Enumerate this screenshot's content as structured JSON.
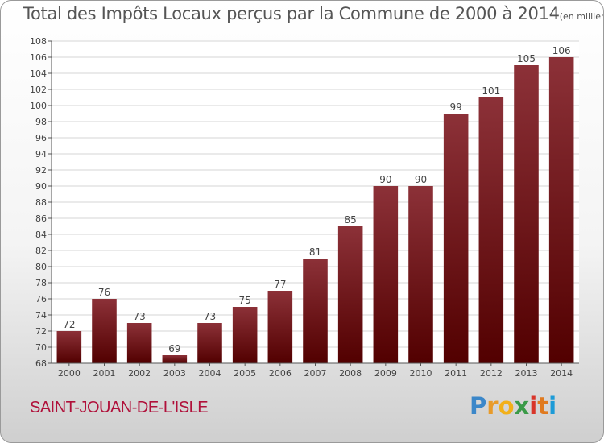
{
  "title": "Total des Impôts Locaux perçus par la Commune de 2000 à 2014",
  "unit": "(en milliers d'€)",
  "commune": "SAINT-JOUAN-DE-L'ISLE",
  "logo": "Proxiti",
  "colors": {
    "bar_top": "#8c3138",
    "bar_bottom": "#520000",
    "commune": "#b0103a"
  },
  "chart_data": {
    "type": "bar",
    "title": "Total des Impôts Locaux perçus par la Commune de 2000 à 2014",
    "xlabel": "",
    "ylabel": "en milliers d'€",
    "categories": [
      "2000",
      "2001",
      "2002",
      "2003",
      "2004",
      "2005",
      "2006",
      "2007",
      "2008",
      "2009",
      "2010",
      "2011",
      "2012",
      "2013",
      "2014"
    ],
    "values": [
      72,
      76,
      73,
      69,
      73,
      75,
      77,
      81,
      85,
      90,
      90,
      99,
      101,
      105,
      106
    ],
    "ylim": [
      68,
      108
    ],
    "yticks": [
      68,
      70,
      72,
      74,
      76,
      78,
      80,
      82,
      84,
      86,
      88,
      90,
      92,
      94,
      96,
      98,
      100,
      102,
      104,
      106,
      108
    ],
    "grid": true
  }
}
